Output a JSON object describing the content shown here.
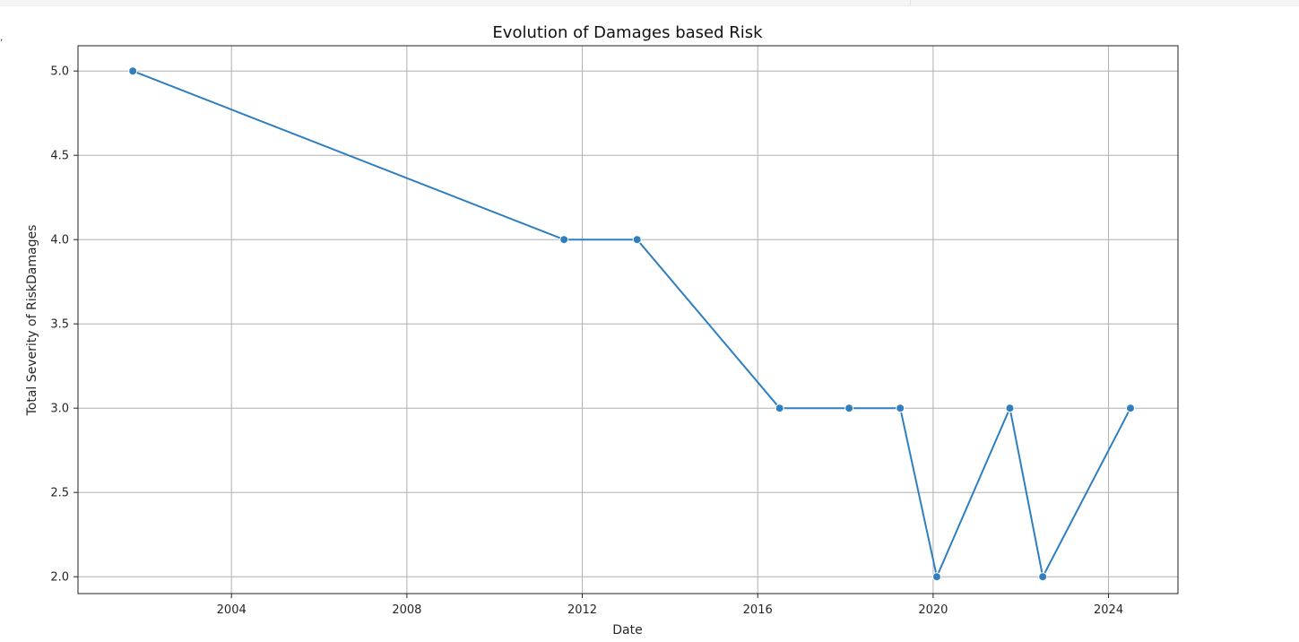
{
  "window": {
    "edge_mark": ","
  },
  "chart_data": {
    "type": "line",
    "title": "Evolution of Damages based Risk",
    "xlabel": "Date",
    "ylabel": "Total Severity of RiskDamages",
    "xlim": [
      "2000-07-01",
      "2025-08-01"
    ],
    "ylim": [
      1.9,
      5.15
    ],
    "x_ticks": [
      "2004-01-01",
      "2008-01-01",
      "2012-01-01",
      "2016-01-01",
      "2020-01-01",
      "2024-01-01"
    ],
    "x_tick_labels": [
      "2004",
      "2008",
      "2012",
      "2016",
      "2020",
      "2024"
    ],
    "y_ticks": [
      2.0,
      2.5,
      3.0,
      3.5,
      4.0,
      4.5,
      5.0
    ],
    "y_tick_labels": [
      "2.0",
      "2.5",
      "3.0",
      "3.5",
      "4.0",
      "4.5",
      "5.0"
    ],
    "grid": true,
    "series": [
      {
        "color": "#2f7fc0",
        "marker": "circle",
        "points": [
          {
            "x": "2001-10-01",
            "y": 5.0
          },
          {
            "x": "2011-08-01",
            "y": 4.0
          },
          {
            "x": "2013-04-01",
            "y": 4.0
          },
          {
            "x": "2016-07-01",
            "y": 3.0
          },
          {
            "x": "2018-02-01",
            "y": 3.0
          },
          {
            "x": "2019-04-01",
            "y": 3.0
          },
          {
            "x": "2020-02-01",
            "y": 2.0
          },
          {
            "x": "2021-10-01",
            "y": 3.0
          },
          {
            "x": "2022-07-01",
            "y": 2.0
          },
          {
            "x": "2024-07-01",
            "y": 3.0
          }
        ]
      }
    ]
  }
}
